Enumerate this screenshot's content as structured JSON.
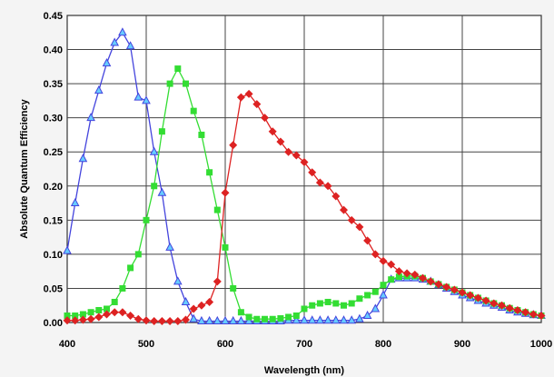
{
  "chart_data": {
    "type": "line",
    "title": "",
    "xlabel": "Wavelength (nm)",
    "ylabel": "Absolute Quantum Efficiency",
    "xlim": [
      400,
      1000
    ],
    "ylim": [
      0,
      0.45
    ],
    "grid": true,
    "x_ticks": [
      "400",
      "500",
      "600",
      "700",
      "800",
      "900",
      "1000"
    ],
    "y_ticks": [
      "0.00",
      "0.05",
      "0.10",
      "0.15",
      "0.20",
      "0.25",
      "0.30",
      "0.35",
      "0.40",
      "0.45"
    ],
    "series": [
      {
        "color": "#4444dd",
        "marker": "triangle",
        "marker_fill": "#66ccff",
        "x": [
          400,
          410,
          420,
          430,
          440,
          450,
          460,
          470,
          480,
          490,
          500,
          510,
          520,
          530,
          540,
          550,
          560,
          570,
          580,
          590,
          600,
          610,
          620,
          630,
          640,
          650,
          660,
          670,
          680,
          690,
          700,
          710,
          720,
          730,
          740,
          750,
          760,
          770,
          780,
          790,
          800,
          810,
          820,
          830,
          840,
          850,
          860,
          870,
          880,
          890,
          900,
          910,
          920,
          930,
          940,
          950,
          960,
          970,
          980,
          990,
          1000
        ],
        "y": [
          0.105,
          0.175,
          0.24,
          0.3,
          0.34,
          0.38,
          0.41,
          0.425,
          0.405,
          0.33,
          0.325,
          0.25,
          0.19,
          0.11,
          0.06,
          0.03,
          0.005,
          0.002,
          0.002,
          0.002,
          0.002,
          0.002,
          0.002,
          0.002,
          0.002,
          0.002,
          0.002,
          0.002,
          0.003,
          0.003,
          0.003,
          0.003,
          0.003,
          0.003,
          0.003,
          0.003,
          0.003,
          0.005,
          0.01,
          0.02,
          0.04,
          0.063,
          0.065,
          0.065,
          0.065,
          0.063,
          0.06,
          0.055,
          0.05,
          0.045,
          0.04,
          0.036,
          0.032,
          0.028,
          0.025,
          0.022,
          0.018,
          0.015,
          0.013,
          0.011,
          0.01
        ]
      },
      {
        "color": "#33dd33",
        "marker": "square",
        "marker_fill": "#33dd33",
        "x": [
          400,
          410,
          420,
          430,
          440,
          450,
          460,
          470,
          480,
          490,
          500,
          510,
          520,
          530,
          540,
          550,
          560,
          570,
          580,
          590,
          600,
          610,
          620,
          630,
          640,
          650,
          660,
          670,
          680,
          690,
          700,
          710,
          720,
          730,
          740,
          750,
          760,
          770,
          780,
          790,
          800,
          810,
          820,
          830,
          840,
          850,
          860,
          870,
          880,
          890,
          900,
          910,
          920,
          930,
          940,
          950,
          960,
          970,
          980,
          990,
          1000
        ],
        "y": [
          0.01,
          0.01,
          0.012,
          0.015,
          0.018,
          0.02,
          0.03,
          0.05,
          0.08,
          0.1,
          0.15,
          0.2,
          0.28,
          0.35,
          0.372,
          0.35,
          0.31,
          0.275,
          0.22,
          0.165,
          0.11,
          0.05,
          0.015,
          0.008,
          0.005,
          0.005,
          0.005,
          0.006,
          0.008,
          0.01,
          0.02,
          0.025,
          0.028,
          0.03,
          0.028,
          0.025,
          0.028,
          0.035,
          0.04,
          0.045,
          0.055,
          0.063,
          0.067,
          0.068,
          0.068,
          0.065,
          0.06,
          0.056,
          0.052,
          0.048,
          0.044,
          0.04,
          0.036,
          0.032,
          0.028,
          0.025,
          0.021,
          0.018,
          0.015,
          0.012,
          0.01
        ]
      },
      {
        "color": "#dd2222",
        "marker": "diamond",
        "marker_fill": "#dd2222",
        "x": [
          400,
          410,
          420,
          430,
          440,
          450,
          460,
          470,
          480,
          490,
          500,
          510,
          520,
          530,
          540,
          550,
          560,
          570,
          580,
          590,
          600,
          610,
          620,
          630,
          640,
          650,
          660,
          670,
          680,
          690,
          700,
          710,
          720,
          730,
          740,
          750,
          760,
          770,
          780,
          790,
          800,
          810,
          820,
          830,
          840,
          850,
          860,
          870,
          880,
          890,
          900,
          910,
          920,
          930,
          940,
          950,
          960,
          970,
          980,
          990,
          1000
        ],
        "y": [
          0.003,
          0.003,
          0.004,
          0.005,
          0.008,
          0.012,
          0.015,
          0.015,
          0.01,
          0.005,
          0.003,
          0.002,
          0.002,
          0.002,
          0.002,
          0.004,
          0.02,
          0.025,
          0.03,
          0.06,
          0.19,
          0.26,
          0.33,
          0.335,
          0.32,
          0.3,
          0.28,
          0.265,
          0.25,
          0.245,
          0.235,
          0.22,
          0.205,
          0.2,
          0.185,
          0.165,
          0.15,
          0.14,
          0.12,
          0.1,
          0.09,
          0.085,
          0.075,
          0.072,
          0.07,
          0.065,
          0.06,
          0.056,
          0.052,
          0.048,
          0.044,
          0.04,
          0.036,
          0.032,
          0.028,
          0.025,
          0.021,
          0.018,
          0.015,
          0.012,
          0.01
        ]
      }
    ]
  }
}
